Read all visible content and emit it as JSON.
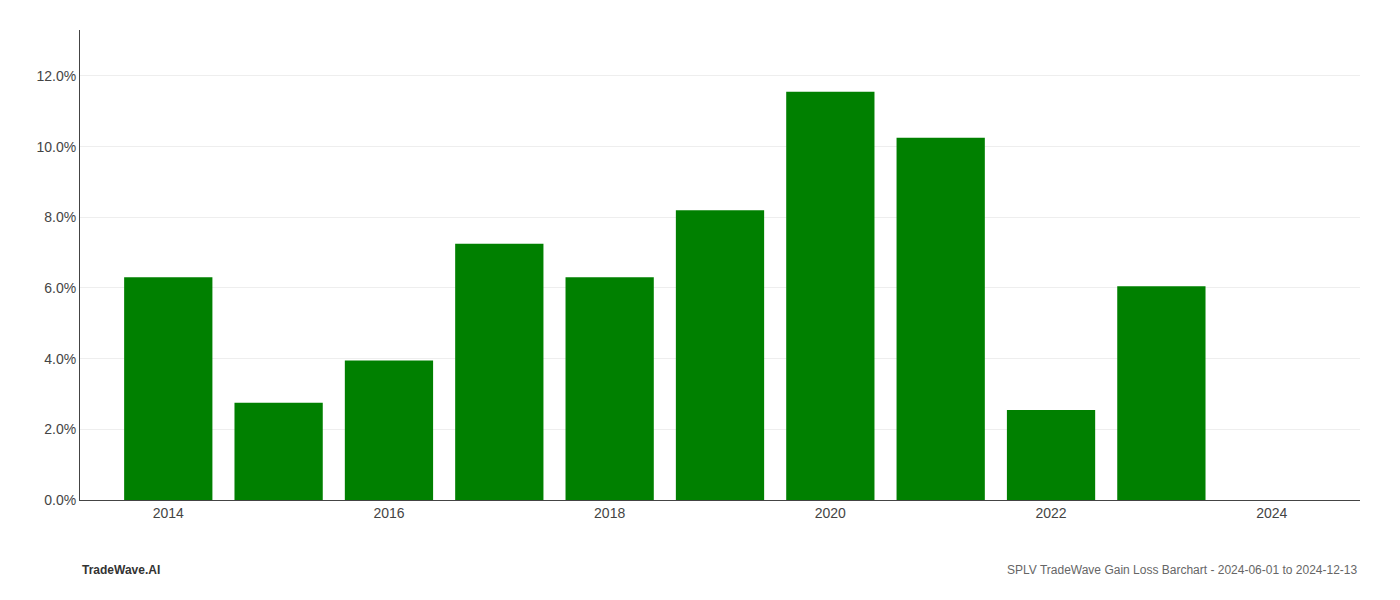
{
  "chart_data": {
    "type": "bar",
    "x": [
      2014,
      2015,
      2016,
      2017,
      2018,
      2019,
      2020,
      2021,
      2022,
      2023
    ],
    "values": [
      0.063,
      0.0275,
      0.0395,
      0.0725,
      0.063,
      0.082,
      0.1155,
      0.1025,
      0.0255,
      0.0605
    ],
    "color": "#008000",
    "xlim": [
      2013.2,
      2024.8
    ],
    "xticks": [
      2014,
      2016,
      2018,
      2020,
      2022,
      2024
    ],
    "ylim": [
      0,
      0.133
    ],
    "yticks": [
      {
        "value": 0.0,
        "label": "0.0%"
      },
      {
        "value": 0.02,
        "label": "2.0%"
      },
      {
        "value": 0.04,
        "label": "4.0%"
      },
      {
        "value": 0.06,
        "label": "6.0%"
      },
      {
        "value": 0.08,
        "label": "8.0%"
      },
      {
        "value": 0.1,
        "label": "10.0%"
      },
      {
        "value": 0.12,
        "label": "12.0%"
      }
    ],
    "grid": true,
    "annotations": [
      "TradeWave.AI",
      "SPLV TradeWave Gain Loss Barchart - 2024-06-01 to 2024-12-13"
    ]
  }
}
